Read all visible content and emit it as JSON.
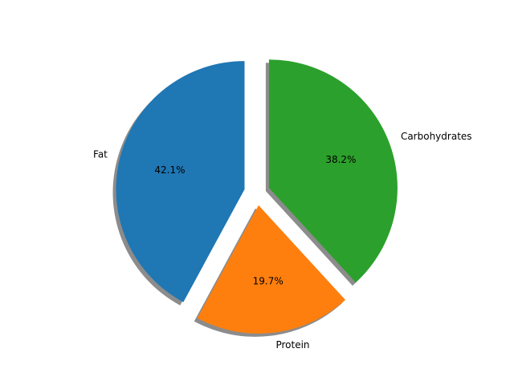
{
  "chart_data": {
    "type": "pie",
    "title": "",
    "labels": [
      "Fat",
      "Protein",
      "Carbohydrates"
    ],
    "values": [
      42.1,
      19.7,
      38.2
    ],
    "percent_labels": [
      "42.1%",
      "19.7%",
      "38.2%"
    ],
    "colors": [
      "#1f77b4",
      "#ff7f0e",
      "#2ca02c"
    ],
    "explode": [
      0.1,
      0.1,
      0.1
    ],
    "start_angle_deg": 90,
    "shadow": true,
    "legend": "none"
  }
}
